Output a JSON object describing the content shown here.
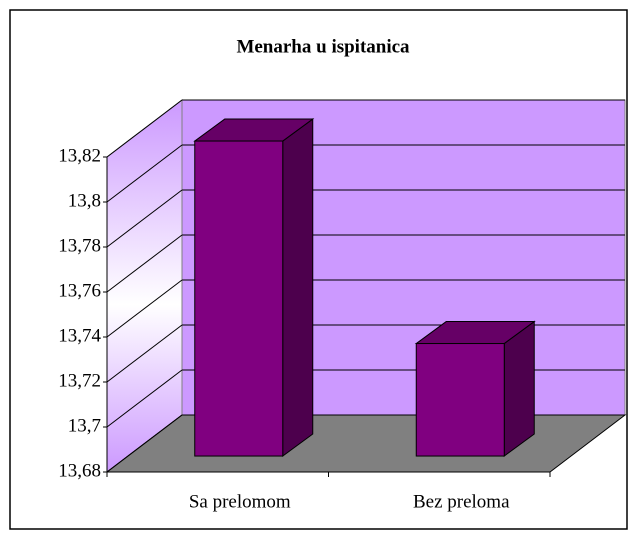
{
  "chart_data": {
    "type": "bar",
    "title": "Menarha u ispitanica",
    "categories": [
      "Sa prelomom",
      "Bez preloma"
    ],
    "values": [
      13.82,
      13.73
    ],
    "color": "#800080",
    "ylim": [
      13.68,
      13.82
    ],
    "yticks": [
      {
        "value": 13.68,
        "label": "13,68"
      },
      {
        "value": 13.7,
        "label": "13,7"
      },
      {
        "value": 13.72,
        "label": "13,72"
      },
      {
        "value": 13.74,
        "label": "13,74"
      },
      {
        "value": 13.76,
        "label": "13,76"
      },
      {
        "value": 13.78,
        "label": "13,78"
      },
      {
        "value": 13.8,
        "label": "13,8"
      },
      {
        "value": 13.82,
        "label": "13,82"
      }
    ],
    "grid": true
  }
}
